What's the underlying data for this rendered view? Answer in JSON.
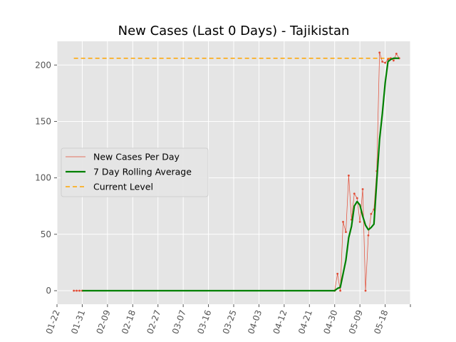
{
  "chart_data": {
    "type": "line",
    "title": "New Cases (Last 0 Days) - Tajikistan",
    "xlabel": "",
    "ylabel": "",
    "x_tick_labels": [
      "01-22",
      "01-31",
      "02-09",
      "02-18",
      "02-27",
      "03-07",
      "03-16",
      "03-25",
      "04-03",
      "04-12",
      "04-21",
      "04-30",
      "05-09",
      "05-18"
    ],
    "xlim": [
      "2020-01-22",
      "2020-05-27"
    ],
    "ylim": [
      -12,
      221
    ],
    "y_ticks": [
      0,
      50,
      100,
      150,
      200
    ],
    "grid": true,
    "legend_position": "center-left",
    "current_level": 206,
    "series": [
      {
        "name": "New Cases Per Day",
        "color": "#e24a33",
        "style": "thin line with point markers",
        "points": [
          [
            "2020-01-28",
            0
          ],
          [
            "2020-01-29",
            0
          ],
          [
            "2020-01-30",
            0
          ],
          [
            "2020-01-31",
            0
          ],
          [
            "2020-04-30",
            0
          ],
          [
            "2020-05-01",
            15
          ],
          [
            "2020-05-02",
            0
          ],
          [
            "2020-05-03",
            61
          ],
          [
            "2020-05-04",
            52
          ],
          [
            "2020-05-05",
            102
          ],
          [
            "2020-05-06",
            63
          ],
          [
            "2020-05-07",
            86
          ],
          [
            "2020-05-08",
            82
          ],
          [
            "2020-05-09",
            61
          ],
          [
            "2020-05-10",
            90
          ],
          [
            "2020-05-11",
            0
          ],
          [
            "2020-05-12",
            49
          ],
          [
            "2020-05-13",
            68
          ],
          [
            "2020-05-14",
            72
          ],
          [
            "2020-05-15",
            106
          ],
          [
            "2020-05-16",
            211
          ],
          [
            "2020-05-17",
            203
          ],
          [
            "2020-05-18",
            202
          ],
          [
            "2020-05-19",
            205
          ],
          [
            "2020-05-20",
            206
          ],
          [
            "2020-05-21",
            204
          ],
          [
            "2020-05-22",
            210
          ],
          [
            "2020-05-23",
            206
          ]
        ]
      },
      {
        "name": "7 Day Rolling Average",
        "color": "#008000",
        "style": "thick line",
        "points": [
          [
            "2020-01-31",
            0
          ],
          [
            "2020-04-30",
            0
          ],
          [
            "2020-05-01",
            2
          ],
          [
            "2020-05-02",
            3
          ],
          [
            "2020-05-03",
            15
          ],
          [
            "2020-05-04",
            27
          ],
          [
            "2020-05-05",
            47
          ],
          [
            "2020-05-06",
            57
          ],
          [
            "2020-05-07",
            75
          ],
          [
            "2020-05-08",
            79
          ],
          [
            "2020-05-09",
            76
          ],
          [
            "2020-05-10",
            66
          ],
          [
            "2020-05-11",
            58
          ],
          [
            "2020-05-12",
            54
          ],
          [
            "2020-05-13",
            56
          ],
          [
            "2020-05-14",
            59
          ],
          [
            "2020-05-15",
            97
          ],
          [
            "2020-05-16",
            134
          ],
          [
            "2020-05-17",
            157
          ],
          [
            "2020-05-18",
            184
          ],
          [
            "2020-05-19",
            203
          ],
          [
            "2020-05-20",
            205
          ],
          [
            "2020-05-21",
            206
          ],
          [
            "2020-05-22",
            206
          ],
          [
            "2020-05-23",
            206
          ]
        ]
      },
      {
        "name": "Current Level",
        "color": "#ffa500",
        "style": "dashed horizontal line",
        "points": [
          [
            "2020-01-28",
            206
          ],
          [
            "2020-05-23",
            206
          ]
        ]
      }
    ]
  }
}
